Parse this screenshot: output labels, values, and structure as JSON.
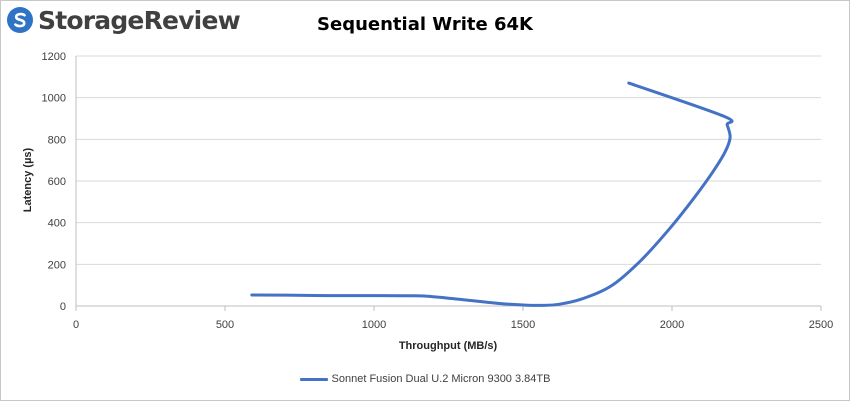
{
  "logo": {
    "text": "StorageReview"
  },
  "chart_data": {
    "type": "line",
    "title": "Sequential Write 64K",
    "xlabel": "Throughput (MB/s)",
    "ylabel": "Latency (µs)",
    "xlim": [
      0,
      2500
    ],
    "ylim": [
      0,
      1200
    ],
    "x_ticks": [
      "0",
      "500",
      "1000",
      "1500",
      "2000",
      "2500"
    ],
    "y_ticks": [
      "0",
      "200",
      "400",
      "600",
      "800",
      "1000",
      "1200"
    ],
    "grid": "horizontal",
    "legend_position": "bottom",
    "colors": {
      "series": "#4472c4",
      "grid": "#d9d9d9",
      "axis": "#bfbfbf"
    },
    "series": [
      {
        "name": "Sonnet Fusion Dual U.2 Micron 9300 3.84TB",
        "x": [
          590,
          700,
          850,
          1000,
          1100,
          1180,
          1300,
          1420,
          1500,
          1560,
          1620,
          1700,
          1800,
          1900,
          2000,
          2080,
          2140,
          2180,
          2195,
          2185,
          2175,
          1855
        ],
        "y": [
          53,
          52,
          50,
          50,
          49,
          47,
          30,
          12,
          5,
          3,
          8,
          35,
          100,
          225,
          385,
          530,
          650,
          745,
          810,
          870,
          910,
          1070
        ]
      }
    ]
  }
}
